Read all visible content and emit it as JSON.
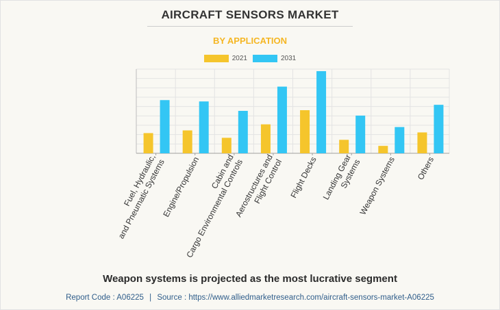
{
  "title": "AIRCRAFT SENSORS MARKET",
  "subtitle": "BY APPLICATION",
  "headline": "Weapon systems is projected as the most lucrative segment",
  "footer": {
    "report_code_label": "Report Code : A06225",
    "separator": "|",
    "source": "Source : https://www.alliedmarketresearch.com/aircraft-sensors-market-A06225"
  },
  "colors": {
    "series_2021": "#f5c52c",
    "series_2031": "#33c6f4",
    "subtitle": "#f5b623"
  },
  "chart_data": {
    "type": "bar",
    "title": "AIRCRAFT SENSORS MARKET",
    "subtitle": "BY APPLICATION",
    "categories": [
      [
        "Fuel, Hydraulic,",
        "and Pneumatic Systems"
      ],
      [
        "Engine/Propulsion"
      ],
      [
        "Cabin and",
        "Cargo Environmental Controls"
      ],
      [
        "Aerostructures and",
        "Flight Control"
      ],
      [
        "Flight Decks"
      ],
      [
        "Landing Gear",
        "Systems"
      ],
      [
        "Weapon Systems"
      ],
      [
        "Others"
      ]
    ],
    "series": [
      {
        "name": "2021",
        "values": [
          30,
          34,
          23,
          43,
          64,
          20,
          11,
          31
        ]
      },
      {
        "name": "2031",
        "values": [
          79,
          77,
          63,
          99,
          122,
          56,
          39,
          72
        ]
      }
    ],
    "ylim": [
      0,
      125
    ],
    "grid": true,
    "legend": "top-center",
    "xlabel": "",
    "ylabel": ""
  }
}
